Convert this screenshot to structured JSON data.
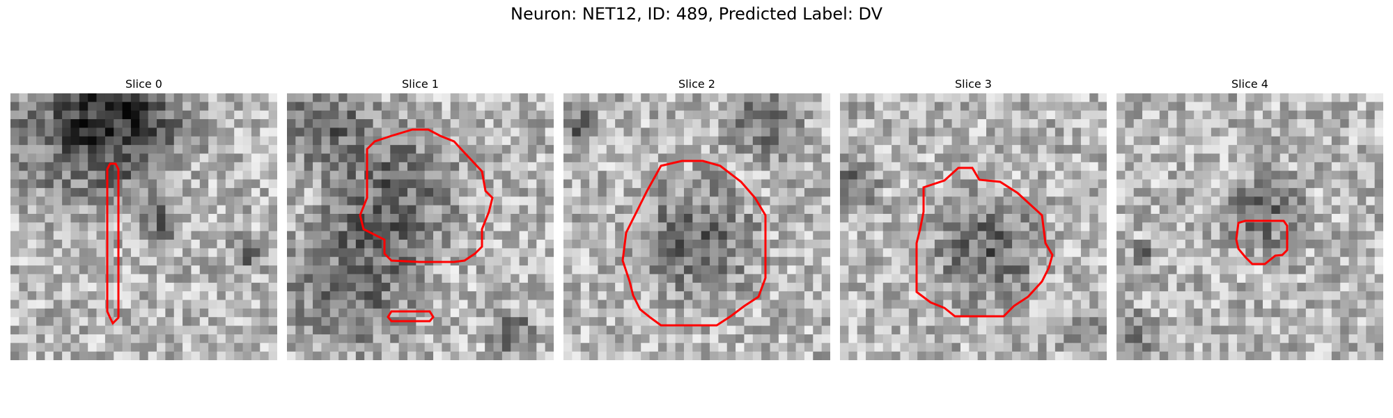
{
  "figure": {
    "title": "Neuron: NET12, ID: 489, Predicted Label: DV",
    "panels": [
      {
        "title": "Slice 0"
      },
      {
        "title": "Slice 1"
      },
      {
        "title": "Slice 2"
      },
      {
        "title": "Slice 3"
      },
      {
        "title": "Slice 4"
      }
    ],
    "contour_color": "#ff0000"
  }
}
